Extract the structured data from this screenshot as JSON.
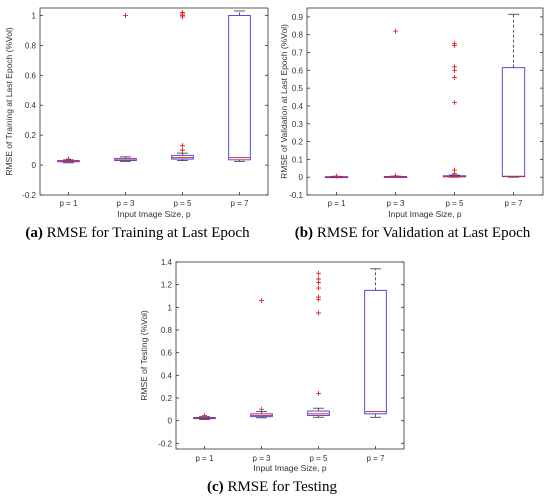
{
  "chart_data": [
    {
      "type": "box",
      "caption_label": "(a)",
      "caption_text": "RMSE for Training at Last Epoch",
      "xlabel": "Input Image Size, p",
      "ylabel": "RMSE of Training at Last Epoch (%Vol)",
      "ylim": [
        -0.2,
        1.05
      ],
      "yticks": [
        -0.2,
        0,
        0.2,
        0.4,
        0.6,
        0.8,
        1
      ],
      "categories": [
        "p = 1",
        "p = 3",
        "p = 5",
        "p = 7"
      ],
      "boxes": [
        {
          "min": 0.015,
          "q1": 0.022,
          "median": 0.025,
          "q3": 0.03,
          "max": 0.035,
          "outliers": [
            0.04
          ]
        },
        {
          "min": 0.025,
          "q1": 0.03,
          "median": 0.035,
          "q3": 0.045,
          "max": 0.055,
          "outliers": [
            1.0
          ]
        },
        {
          "min": 0.03,
          "q1": 0.04,
          "median": 0.05,
          "q3": 0.065,
          "max": 0.08,
          "outliers": [
            1.0,
            1.01,
            1.02,
            0.99,
            0.13,
            0.1
          ]
        },
        {
          "min": 0.025,
          "q1": 0.035,
          "median": 0.05,
          "q3": 1.0,
          "max": 1.03,
          "outliers": []
        }
      ]
    },
    {
      "type": "box",
      "caption_label": "(b)",
      "caption_text": "RMSE for Validation at Last Epoch",
      "xlabel": "Input Image Size, p",
      "ylabel": "RMSE of Validation at Last Epoch (%Vol)",
      "ylim": [
        -0.1,
        0.95
      ],
      "yticks": [
        -0.1,
        0,
        0.1,
        0.2,
        0.3,
        0.4,
        0.5,
        0.6,
        0.7,
        0.8,
        0.9
      ],
      "categories": [
        "p = 1",
        "p = 3",
        "p = 5",
        "p = 7"
      ],
      "boxes": [
        {
          "min": 0.0,
          "q1": 0.001,
          "median": 0.002,
          "q3": 0.003,
          "max": 0.005,
          "outliers": [
            0.006
          ]
        },
        {
          "min": 0.0,
          "q1": 0.001,
          "median": 0.002,
          "q3": 0.004,
          "max": 0.006,
          "outliers": [
            0.82,
            0.008
          ]
        },
        {
          "min": 0.0,
          "q1": 0.002,
          "median": 0.004,
          "q3": 0.008,
          "max": 0.012,
          "outliers": [
            0.75,
            0.74,
            0.62,
            0.6,
            0.56,
            0.42,
            0.04,
            0.02
          ]
        },
        {
          "min": 0.0,
          "q1": 0.003,
          "median": 0.005,
          "q3": 0.615,
          "max": 0.915,
          "outliers": []
        }
      ]
    },
    {
      "type": "box",
      "caption_label": "(c)",
      "caption_text": "RMSE for Testing",
      "xlabel": "Input Image Size, p",
      "ylabel": "RMSE of Testing (%Vol)",
      "ylim": [
        -0.25,
        1.4
      ],
      "yticks": [
        -0.2,
        0,
        0.2,
        0.4,
        0.6,
        0.8,
        1,
        1.2,
        1.4
      ],
      "categories": [
        "p = 1",
        "p = 3",
        "p = 5",
        "p = 7"
      ],
      "boxes": [
        {
          "min": 0.01,
          "q1": 0.018,
          "median": 0.022,
          "q3": 0.028,
          "max": 0.035,
          "outliers": [
            0.045
          ]
        },
        {
          "min": 0.025,
          "q1": 0.035,
          "median": 0.045,
          "q3": 0.06,
          "max": 0.08,
          "outliers": [
            1.06,
            0.1
          ]
        },
        {
          "min": 0.03,
          "q1": 0.045,
          "median": 0.06,
          "q3": 0.085,
          "max": 0.11,
          "outliers": [
            1.3,
            1.25,
            1.22,
            1.17,
            1.09,
            1.07,
            0.95,
            0.24
          ]
        },
        {
          "min": 0.03,
          "q1": 0.06,
          "median": 0.08,
          "q3": 1.15,
          "max": 1.34,
          "outliers": []
        }
      ]
    }
  ]
}
